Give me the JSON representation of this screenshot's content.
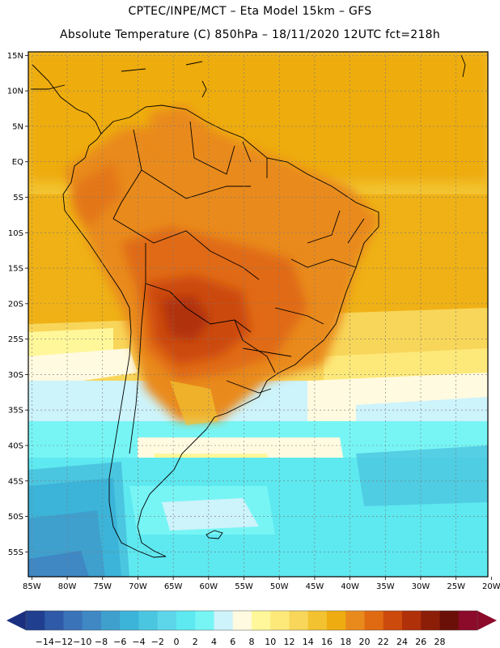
{
  "header": {
    "line1": "CPTEC/INPE/MCT –  Eta Model 15km – GFS",
    "line2": "Absolute Temperature (C) 850hPa – 18/11/2020 12UTC fct=218h"
  },
  "map": {
    "lat_labels": [
      "15N",
      "10N",
      "5N",
      "EQ",
      "5S",
      "10S",
      "15S",
      "20S",
      "25S",
      "30S",
      "35S",
      "40S",
      "45S",
      "50S",
      "55S"
    ],
    "lon_labels": [
      "85W",
      "80W",
      "75W",
      "70W",
      "65W",
      "60W",
      "55W",
      "50W",
      "45W",
      "40W",
      "35W",
      "30W",
      "25W",
      "20W"
    ],
    "lat_range": [
      15.5,
      -58.5
    ],
    "lon_range": [
      -85.5,
      -20.5
    ]
  },
  "colorbar": {
    "labels": [
      "-14",
      "-12",
      "-10",
      "-8",
      "-6",
      "-4",
      "-2",
      "0",
      "2",
      "4",
      "6",
      "8",
      "10",
      "12",
      "14",
      "16",
      "18",
      "20",
      "22",
      "24",
      "26",
      "28"
    ],
    "colors": [
      "#203f8f",
      "#2f5aa8",
      "#3a73b8",
      "#3f88c4",
      "#3fa0ce",
      "#3cb4d9",
      "#4bc6e0",
      "#5dd6ea",
      "#5ee8f0",
      "#77f5f5",
      "#cdf3fb",
      "#fffae0",
      "#fff799",
      "#fde97a",
      "#f8d65a",
      "#f2c230",
      "#eeac10",
      "#e98a1c",
      "#e06a12",
      "#cc4a0c",
      "#b0300a",
      "#8c1e08",
      "#6b1008",
      "#8c0a2a"
    ]
  }
}
